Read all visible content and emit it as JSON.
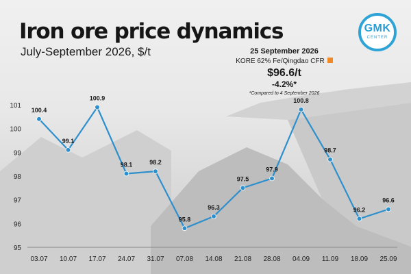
{
  "title": "Iron ore price dynamics",
  "subtitle": "July-September 2026, $/t",
  "logo": {
    "main": "GMK",
    "sub": "CENTER"
  },
  "info": {
    "date": "25 September 2026",
    "index": "KORE 62% Fe/Qingdao CFR",
    "price": "$96.6/t",
    "change": "-4.2%*",
    "note": "*Compared to 4 September 2026",
    "accent": "#f08a24"
  },
  "chart_data": {
    "type": "line",
    "x": [
      "03.07",
      "10.07",
      "17.07",
      "24.07",
      "31.07",
      "07.08",
      "14.08",
      "21.08",
      "28.08",
      "04.09",
      "11.09",
      "18.09",
      "25.09"
    ],
    "values": [
      100.4,
      99.1,
      100.9,
      98.1,
      98.2,
      95.8,
      96.3,
      97.5,
      97.9,
      100.8,
      98.7,
      96.2,
      96.6
    ],
    "data_labels": [
      "100.4",
      "99.1",
      "100.9",
      "98.1",
      "98.2",
      "95.8",
      "96.3",
      "97.5",
      "97.9",
      "100.8",
      "98.7",
      "96.2",
      "96.6"
    ],
    "yticks": [
      "95",
      "96",
      "97",
      "98",
      "99",
      "100",
      "101"
    ],
    "ylim": [
      95,
      101
    ],
    "title": "Iron ore price dynamics",
    "xlabel": "",
    "ylabel": "",
    "grid": false,
    "line_color": "#2e8fcd",
    "marker_color": "#2e8fcd"
  }
}
